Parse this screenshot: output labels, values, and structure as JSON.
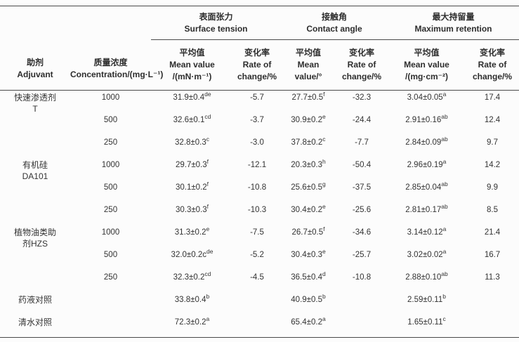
{
  "page": {
    "background": "#fcfcfc",
    "text_color": "#333333",
    "rule_color": "#4a4a4a"
  },
  "header": {
    "adjuvant": {
      "zh": "助剂",
      "en": "Adjuvant"
    },
    "concentration": {
      "zh": "质量浓度",
      "en": "Concentration/(mg·L⁻¹)"
    },
    "groups": [
      {
        "zh": "表面张力",
        "en": "Surface tension"
      },
      {
        "zh": "接触角",
        "en": "Contact angle"
      },
      {
        "zh": "最大持留量",
        "en": "Maximum retention"
      }
    ],
    "subcols": [
      {
        "lines": [
          "平均值",
          "Mean value",
          "/(mN·m⁻¹)"
        ]
      },
      {
        "lines": [
          "变化率",
          "Rate of",
          "change/%"
        ]
      },
      {
        "lines": [
          "平均值",
          "Mean",
          "value/°"
        ]
      },
      {
        "lines": [
          "变化率",
          "Rate of",
          "change/%"
        ]
      },
      {
        "lines": [
          "平均值",
          "Mean value",
          "/(mg·cm⁻²)"
        ]
      },
      {
        "lines": [
          "变化率",
          "Rate of",
          "change/%"
        ]
      }
    ]
  },
  "rows": [
    {
      "adjuvant": {
        "lines": [
          "快速渗透剂",
          "T"
        ],
        "rowspan": 3
      },
      "conc": "1000",
      "cells": [
        {
          "v": "31.9±0.4",
          "s": "de"
        },
        {
          "v": "-5.7",
          "s": ""
        },
        {
          "v": "27.7±0.5",
          "s": "f"
        },
        {
          "v": "-32.3",
          "s": ""
        },
        {
          "v": "3.04±0.05",
          "s": "a"
        },
        {
          "v": "17.4",
          "s": ""
        }
      ]
    },
    {
      "conc": "500",
      "cells": [
        {
          "v": "32.6±0.1",
          "s": "cd"
        },
        {
          "v": "-3.7",
          "s": ""
        },
        {
          "v": "30.9±0.2",
          "s": "e"
        },
        {
          "v": "-24.4",
          "s": ""
        },
        {
          "v": "2.91±0.16",
          "s": "ab"
        },
        {
          "v": "12.4",
          "s": ""
        }
      ]
    },
    {
      "conc": "250",
      "cells": [
        {
          "v": "32.8±0.3",
          "s": "c"
        },
        {
          "v": "-3.0",
          "s": ""
        },
        {
          "v": "37.8±0.2",
          "s": "c"
        },
        {
          "v": "-7.7",
          "s": ""
        },
        {
          "v": "2.84±0.09",
          "s": "ab"
        },
        {
          "v": "9.7",
          "s": ""
        }
      ]
    },
    {
      "adjuvant": {
        "lines": [
          "有机硅",
          "DA101"
        ],
        "rowspan": 3
      },
      "conc": "1000",
      "cells": [
        {
          "v": "29.7±0.3",
          "s": "f"
        },
        {
          "v": "-12.1",
          "s": ""
        },
        {
          "v": "20.3±0.3",
          "s": "h"
        },
        {
          "v": "-50.4",
          "s": ""
        },
        {
          "v": "2.96±0.19",
          "s": "a"
        },
        {
          "v": "14.2",
          "s": ""
        }
      ]
    },
    {
      "conc": "500",
      "cells": [
        {
          "v": "30.1±0.2",
          "s": "f"
        },
        {
          "v": "-10.8",
          "s": ""
        },
        {
          "v": "25.6±0.5",
          "s": "g"
        },
        {
          "v": "-37.5",
          "s": ""
        },
        {
          "v": "2.85±0.04",
          "s": "ab"
        },
        {
          "v": "9.9",
          "s": ""
        }
      ]
    },
    {
      "conc": "250",
      "cells": [
        {
          "v": "30.3±0.3",
          "s": "f"
        },
        {
          "v": "-10.3",
          "s": ""
        },
        {
          "v": "30.4±0.2",
          "s": "e"
        },
        {
          "v": "-25.6",
          "s": ""
        },
        {
          "v": "2.81±0.17",
          "s": "ab"
        },
        {
          "v": "8.5",
          "s": ""
        }
      ]
    },
    {
      "adjuvant": {
        "lines": [
          "植物油类助",
          "剂HZS"
        ],
        "rowspan": 3
      },
      "conc": "1000",
      "cells": [
        {
          "v": "31.3±0.2",
          "s": "e"
        },
        {
          "v": "-7.5",
          "s": ""
        },
        {
          "v": "26.7±0.5",
          "s": "f"
        },
        {
          "v": "-34.6",
          "s": ""
        },
        {
          "v": "3.14±0.12",
          "s": "a"
        },
        {
          "v": "21.4",
          "s": ""
        }
      ]
    },
    {
      "conc": "500",
      "cells": [
        {
          "v": "32.0±0.2c",
          "s": "de"
        },
        {
          "v": "-5.2",
          "s": ""
        },
        {
          "v": "30.4±0.3",
          "s": "e"
        },
        {
          "v": "-25.7",
          "s": ""
        },
        {
          "v": "3.02±0.02",
          "s": "a"
        },
        {
          "v": "16.7",
          "s": ""
        }
      ]
    },
    {
      "conc": "250",
      "cells": [
        {
          "v": "32.3±0.2",
          "s": "cd"
        },
        {
          "v": "-4.5",
          "s": ""
        },
        {
          "v": "36.5±0.4",
          "s": "d"
        },
        {
          "v": "-10.8",
          "s": ""
        },
        {
          "v": "2.88±0.10",
          "s": "ab"
        },
        {
          "v": "11.3",
          "s": ""
        }
      ]
    },
    {
      "adjuvant": {
        "lines": [
          "药液对照"
        ],
        "rowspan": 1
      },
      "conc": "",
      "cells": [
        {
          "v": "33.8±0.4",
          "s": "b"
        },
        {
          "v": "",
          "s": ""
        },
        {
          "v": "40.9±0.5",
          "s": "b"
        },
        {
          "v": "",
          "s": ""
        },
        {
          "v": "2.59±0.11",
          "s": "b"
        },
        {
          "v": "",
          "s": ""
        }
      ]
    },
    {
      "adjuvant": {
        "lines": [
          "清水对照"
        ],
        "rowspan": 1
      },
      "conc": "",
      "cells": [
        {
          "v": "72.3±0.2",
          "s": "a"
        },
        {
          "v": "",
          "s": ""
        },
        {
          "v": "65.4±0.2",
          "s": "a"
        },
        {
          "v": "",
          "s": ""
        },
        {
          "v": "1.65±0.11",
          "s": "c"
        },
        {
          "v": "",
          "s": ""
        }
      ]
    }
  ]
}
